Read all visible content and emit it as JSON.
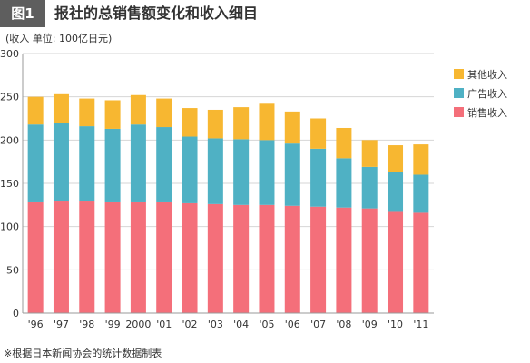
{
  "header": {
    "fig_label": "图1",
    "title": "报社的总销售额变化和收入细目"
  },
  "unit_note": "(收入 单位: 100亿日元)",
  "footnote": "※根据日本新闻协会的统计数据制表",
  "colors": {
    "sales": "#f46f7a",
    "advertising": "#4fb1c4",
    "other": "#f7b731",
    "axis": "#999999",
    "grid": "#d6d6d6",
    "header_bg": "#5e5e5e"
  },
  "chart_data": {
    "type": "bar",
    "stacked": true,
    "categories": [
      "'96",
      "'97",
      "'98",
      "'99",
      "2000",
      "'01",
      "'02",
      "'03",
      "'04",
      "'05",
      "'06",
      "'07",
      "'08",
      "'09",
      "'10",
      "'11"
    ],
    "series": [
      {
        "name": "销售收入",
        "key": "sales",
        "values": [
          128,
          129,
          129,
          128,
          128,
          128,
          127,
          126,
          125,
          125,
          124,
          123,
          122,
          121,
          117,
          116
        ]
      },
      {
        "name": "广告收入",
        "key": "advertising",
        "values": [
          90,
          91,
          87,
          85,
          90,
          87,
          77,
          76,
          76,
          75,
          72,
          67,
          57,
          48,
          46,
          44
        ]
      },
      {
        "name": "其他收入",
        "key": "other",
        "values": [
          32,
          33,
          32,
          33,
          34,
          33,
          33,
          33,
          37,
          42,
          37,
          35,
          35,
          31,
          31,
          35
        ]
      }
    ],
    "legend_order": [
      "其他收入",
      "广告收入",
      "销售收入"
    ],
    "legend_position": "right",
    "ylim": [
      0,
      300
    ],
    "yticks": [
      0,
      50,
      100,
      150,
      200,
      250,
      300
    ],
    "grid": true
  }
}
